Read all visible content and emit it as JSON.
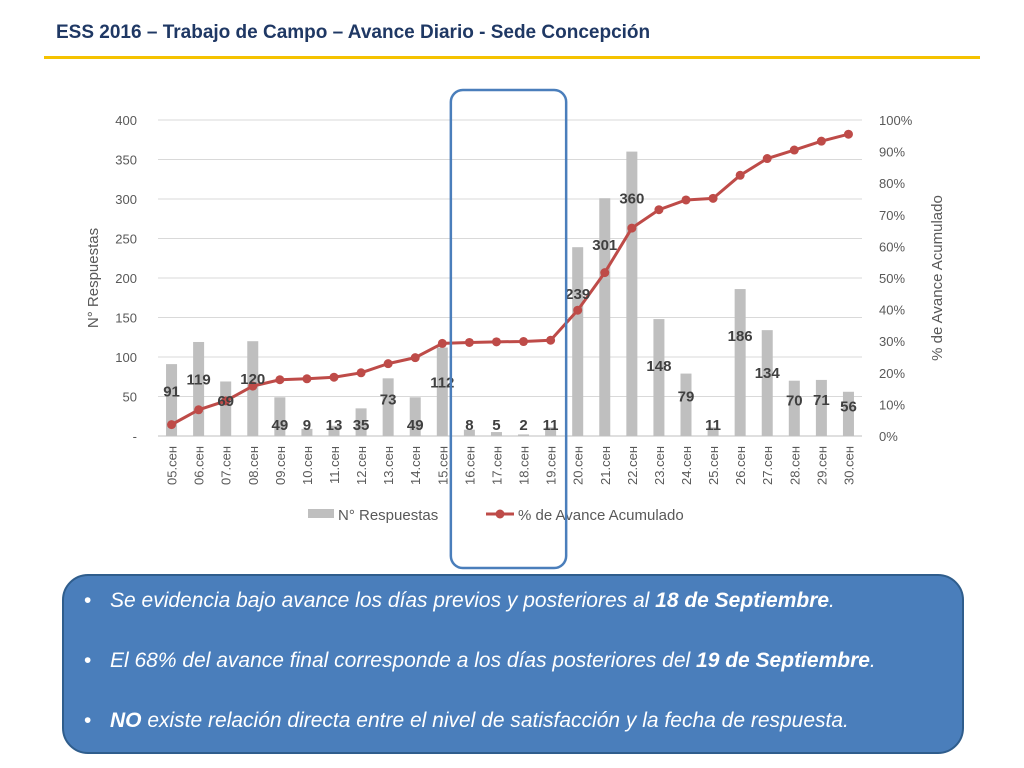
{
  "title": "ESS 2016 – Trabajo de Campo – Avance Diario - Sede Concepción",
  "chart_data": {
    "type": "bar+line",
    "categories": [
      "05.сен",
      "06.сен",
      "07.сен",
      "08.сен",
      "09.сен",
      "10.сен",
      "11.сен",
      "12.сен",
      "13.сен",
      "14.сен",
      "15.сен",
      "16.сен",
      "17.сен",
      "18.сен",
      "19.сен",
      "20.сен",
      "21.сен",
      "22.сен",
      "23.сен",
      "24.сен",
      "25.сен",
      "26.сен",
      "27.сен",
      "28.сен",
      "29.сен",
      "30.сен"
    ],
    "series": [
      {
        "name": "N° Respuestas",
        "type": "bar",
        "axis": "left",
        "color": "#bfbfbf",
        "values": [
          91,
          119,
          69,
          120,
          49,
          9,
          13,
          35,
          73,
          49,
          112,
          8,
          5,
          2,
          11,
          239,
          301,
          360,
          148,
          79,
          11,
          186,
          134,
          70,
          71,
          56
        ]
      },
      {
        "name": "% de Avance Acumulado",
        "type": "line",
        "axis": "right",
        "color": "#be4b48",
        "values": [
          0.036,
          0.083,
          0.111,
          0.158,
          0.178,
          0.181,
          0.186,
          0.2,
          0.229,
          0.248,
          0.293,
          0.296,
          0.298,
          0.299,
          0.303,
          0.398,
          0.517,
          0.658,
          0.716,
          0.747,
          0.752,
          0.825,
          0.878,
          0.905,
          0.933,
          0.955
        ]
      }
    ],
    "ylabel": "N° Respuestas",
    "ylabel_right": "% de Avance Acumulado",
    "ylim": [
      0,
      400
    ],
    "yticks": [
      "-",
      "50",
      "100",
      "150",
      "200",
      "250",
      "300",
      "350",
      "400"
    ],
    "ylim_right": [
      0,
      1
    ],
    "yticks_right": [
      "0%",
      "10%",
      "20%",
      "30%",
      "40%",
      "50%",
      "60%",
      "70%",
      "80%",
      "90%",
      "100%"
    ],
    "legend": "bottom",
    "grid": true,
    "highlight_categories": [
      "16.сен",
      "19.сен"
    ],
    "highlight_color": "#4a7ebb"
  },
  "notes": [
    {
      "before": "Se evidencia bajo avance los días previos y posteriores al ",
      "bold": "18 de Septiembre",
      "after": "."
    },
    {
      "before": "El 68% del avance final corresponde a los días posteriores del ",
      "bold": "19 de Septiembre",
      "after": "."
    },
    {
      "before": "",
      "bold": "NO",
      "after": " existe relación directa entre el nivel de satisfacción y la fecha de respuesta."
    }
  ],
  "bullet": "•"
}
